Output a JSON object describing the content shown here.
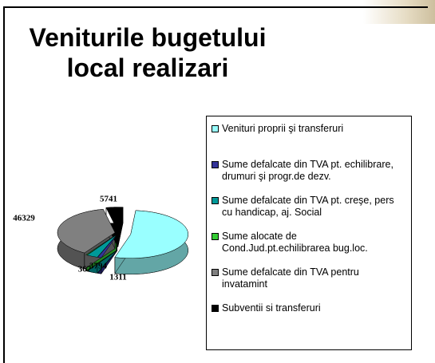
{
  "chart_data": {
    "type": "pie",
    "title": "Veniturile bugetului local realizari",
    "categories": [
      "Venituri proprii şi transferuri",
      "Sume defalcate din TVA pt. echilibrare, drumuri şi progr.de dezv.",
      "Sume defalcate din TVA pt. creşe, pers cu handicap, aj. Social",
      "Sume alocate de Cond.Jud.pt.echilibrarea bug.loc.",
      "Sume defalcate din TVA pentru invatamint",
      "Subventii si transferuri"
    ],
    "values": [
      65023,
      1311,
      3794,
      367,
      46329,
      5741
    ],
    "colors": [
      "#99ffff",
      "#333399",
      "#009999",
      "#33cc33",
      "#808080",
      "#000000"
    ],
    "legend": "right"
  }
}
